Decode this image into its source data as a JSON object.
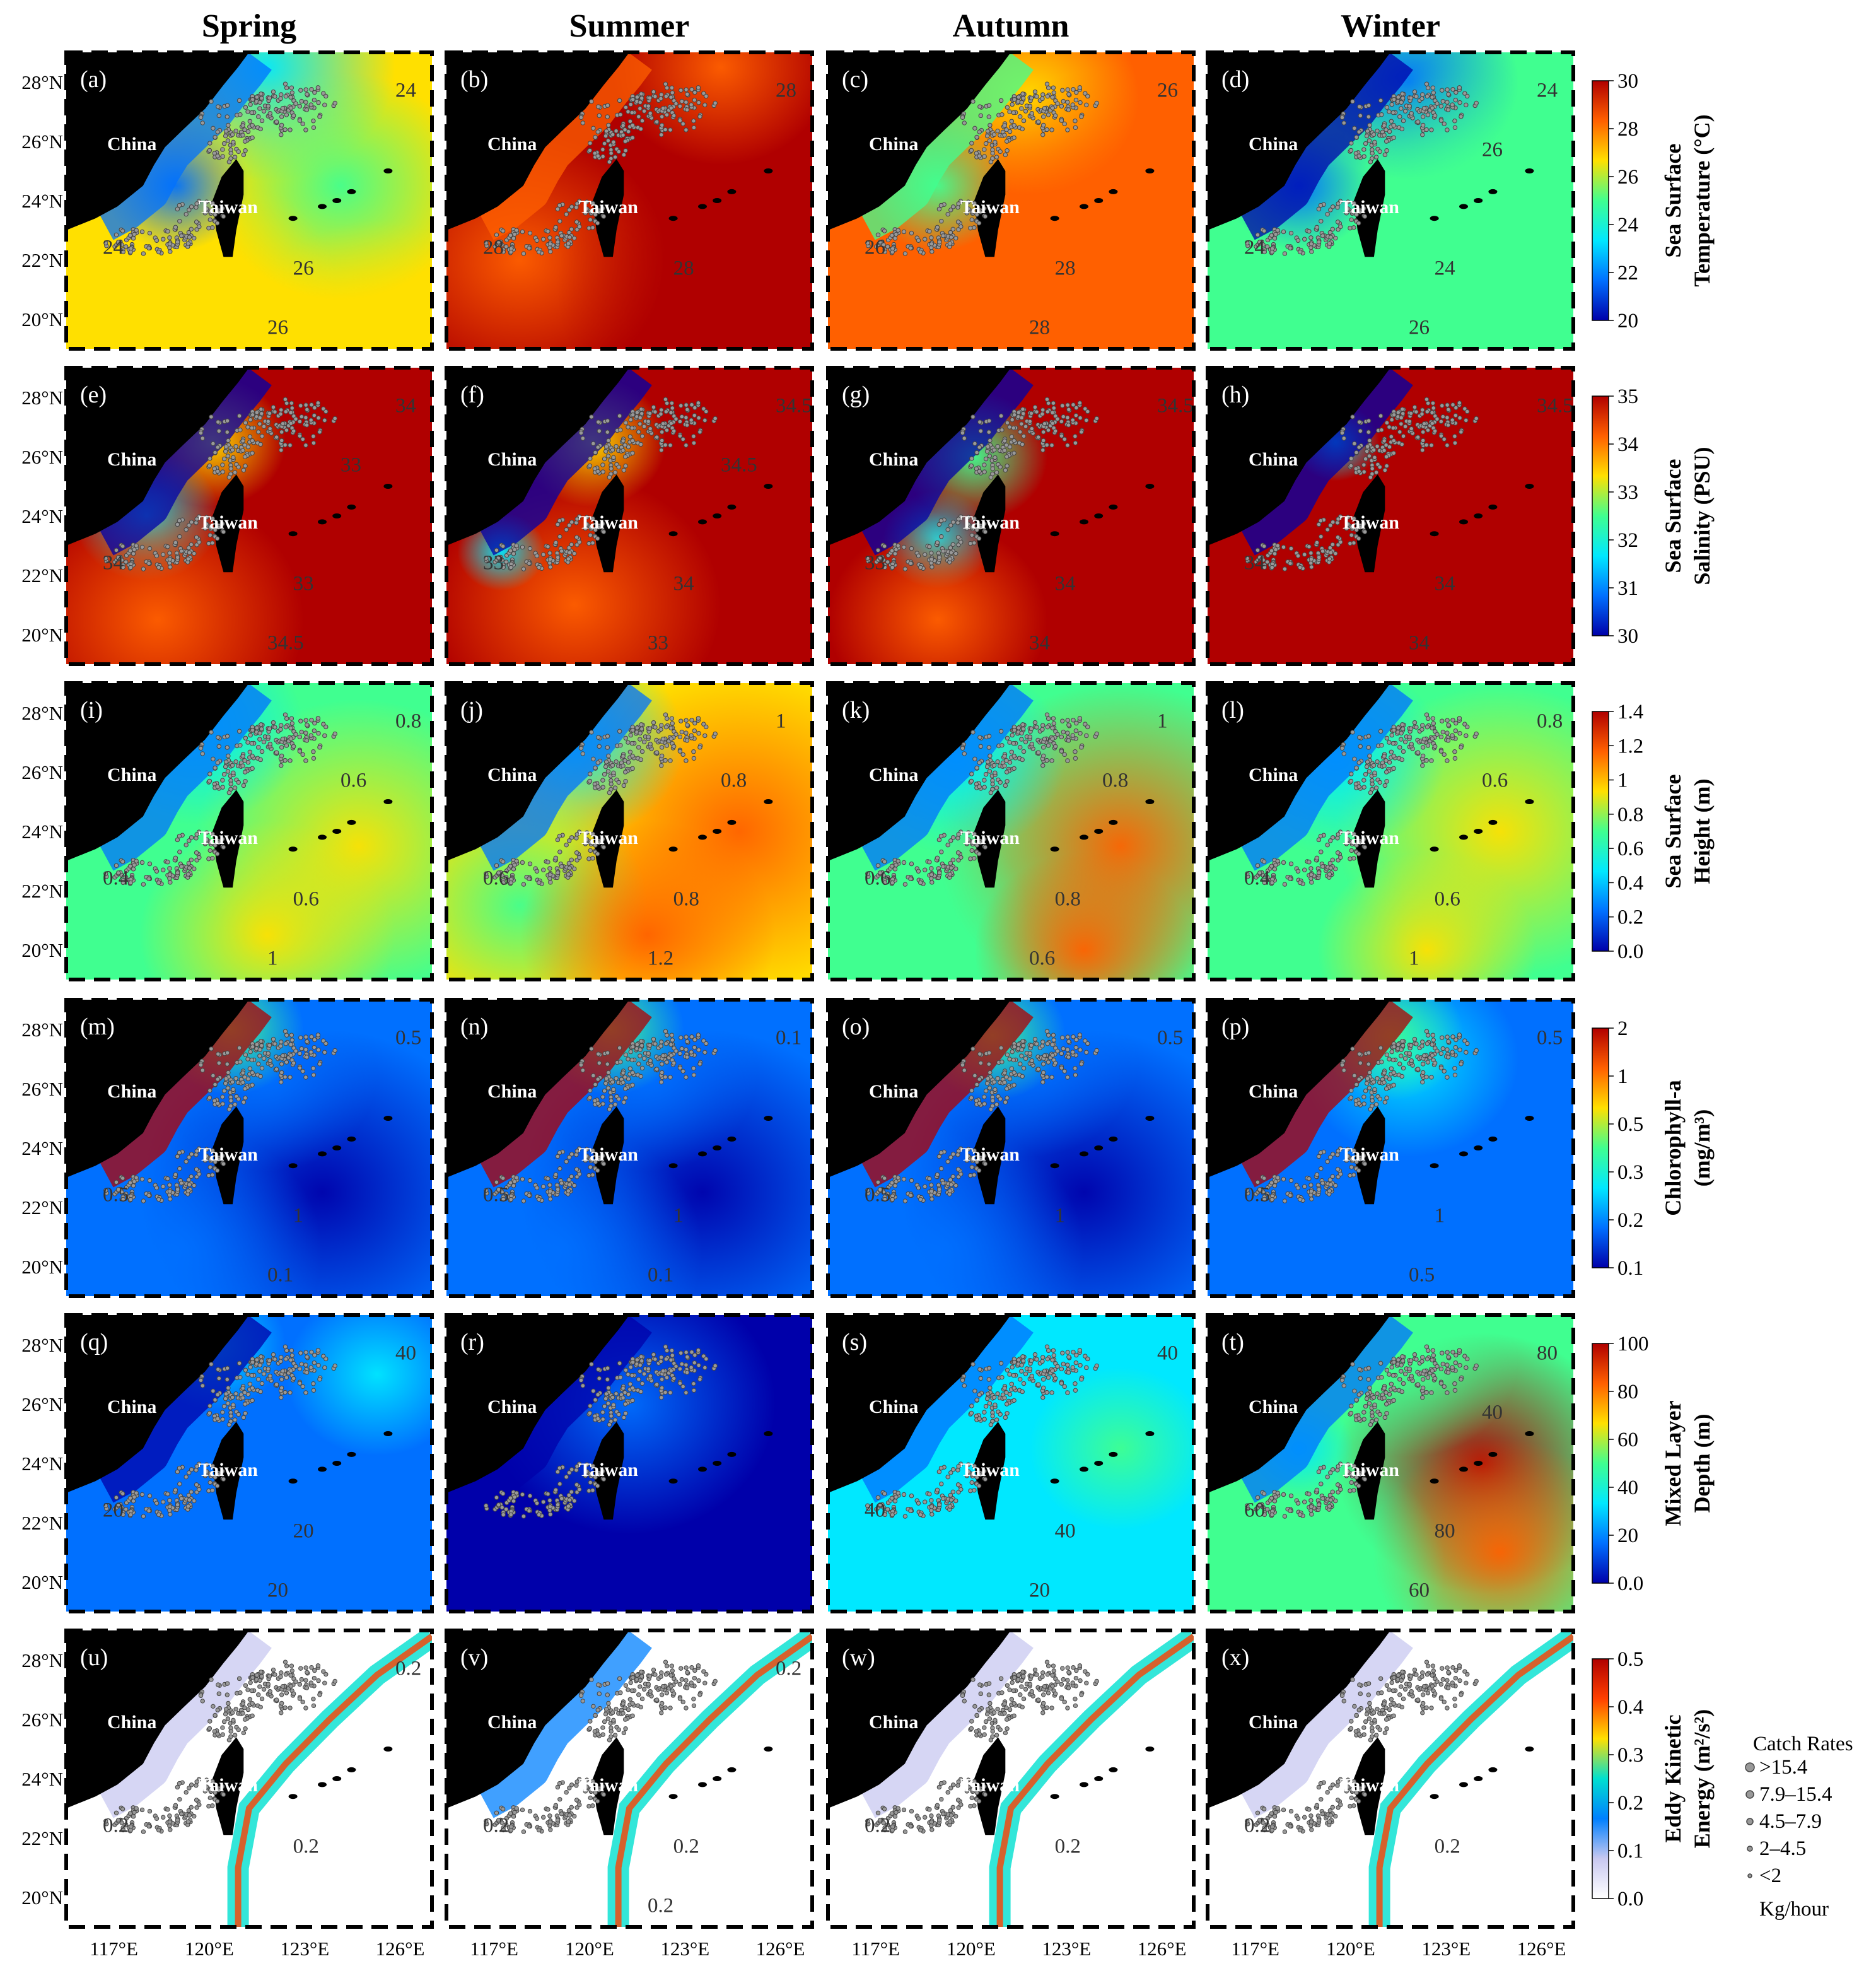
{
  "seasons": [
    "Spring",
    "Summer",
    "Autumn",
    "Winter"
  ],
  "lat_labels": [
    "28°N",
    "26°N",
    "24°N",
    "22°N",
    "20°N"
  ],
  "lon_labels": [
    "117°E",
    "120°E",
    "123°E",
    "126°E"
  ],
  "place_names": {
    "china": "China",
    "taiwan": "Taiwan"
  },
  "rows": [
    {
      "key": "sst",
      "letters": [
        "(a)",
        "(b)",
        "(c)",
        "(d)"
      ],
      "colorbar": {
        "title": [
          "Sea Surface",
          "Temperature (°C)"
        ],
        "ticks": [
          "30",
          "28",
          "26",
          "24",
          "22",
          "20"
        ],
        "colors": [
          "#0000aa",
          "#0070ff",
          "#00e8ff",
          "#40ff90",
          "#ffe000",
          "#ff6000",
          "#b00000"
        ]
      },
      "contours": [
        [
          "24",
          "26",
          "24",
          "26"
        ],
        [
          "28",
          "28",
          "28"
        ],
        [
          "26",
          "28",
          "26",
          "28"
        ],
        [
          "24",
          "24",
          "24",
          "26",
          "26"
        ]
      ]
    },
    {
      "key": "sss",
      "letters": [
        "(e)",
        "(f)",
        "(g)",
        "(h)"
      ],
      "colorbar": {
        "title": [
          "Sea Surface",
          "Salinity (PSU)"
        ],
        "ticks": [
          "35",
          "34",
          "33",
          "32",
          "31",
          "30"
        ],
        "colors": [
          "#0000aa",
          "#0070ff",
          "#00e8ff",
          "#40ff90",
          "#ffe000",
          "#ff6000",
          "#b00000"
        ]
      },
      "contours": [
        [
          "34",
          "33",
          "34",
          "34.5",
          "33"
        ],
        [
          "33",
          "34",
          "34.5",
          "33",
          "34.5"
        ],
        [
          "33",
          "34",
          "34.5",
          "34"
        ],
        [
          "34",
          "34",
          "34.5",
          "34"
        ]
      ]
    },
    {
      "key": "ssh",
      "letters": [
        "(i)",
        "(j)",
        "(k)",
        "(l)"
      ],
      "colorbar": {
        "title": [
          "Sea Surface",
          "Height (m)"
        ],
        "ticks": [
          "1.4",
          "1.2",
          "1",
          "0.8",
          "0.6",
          "0.4",
          "0.2",
          "0.0"
        ],
        "colors": [
          "#0000aa",
          "#0070ff",
          "#00e8ff",
          "#40ff90",
          "#ffe000",
          "#ff6000",
          "#b00000"
        ]
      },
      "contours": [
        [
          "0.4",
          "0.6",
          "0.8",
          "1",
          "0.6"
        ],
        [
          "0.6",
          "0.8",
          "1",
          "1.2",
          "0.8"
        ],
        [
          "0.6",
          "0.8",
          "1",
          "0.6",
          "0.8"
        ],
        [
          "0.4",
          "0.6",
          "0.8",
          "1",
          "0.6"
        ]
      ]
    },
    {
      "key": "chl",
      "letters": [
        "(m)",
        "(n)",
        "(o)",
        "(p)"
      ],
      "colorbar": {
        "title": [
          "Chlorophyll-a",
          "(mg/m³)"
        ],
        "ticks": [
          "2",
          "1",
          "0.5",
          "0.3",
          "0.2",
          "0.1"
        ],
        "colors": [
          "#0000aa",
          "#0070ff",
          "#00e8ff",
          "#40ff90",
          "#ffe000",
          "#ff6000",
          "#b00000"
        ]
      },
      "contours": [
        [
          "0.5",
          "1",
          "0.5",
          "0.1"
        ],
        [
          "0.5",
          "1",
          "0.1",
          "0.1"
        ],
        [
          "0.5",
          "1",
          "0.5"
        ],
        [
          "0.5",
          "1",
          "0.5",
          "0.5"
        ]
      ]
    },
    {
      "key": "mld",
      "letters": [
        "(q)",
        "(r)",
        "(s)",
        "(t)"
      ],
      "colorbar": {
        "title": [
          "Mixed Layer",
          "Depth (m)"
        ],
        "ticks": [
          "100",
          "80",
          "60",
          "40",
          "20",
          "0.0"
        ],
        "colors": [
          "#0000aa",
          "#0070ff",
          "#00e8ff",
          "#40ff90",
          "#ffe000",
          "#ff6000",
          "#b00000"
        ]
      },
      "contours": [
        [
          "20",
          "20",
          "40",
          "20"
        ],
        [],
        [
          "40",
          "40",
          "40",
          "20"
        ],
        [
          "60",
          "80",
          "80",
          "60",
          "40"
        ]
      ]
    },
    {
      "key": "eke",
      "letters": [
        "(u)",
        "(v)",
        "(w)",
        "(x)"
      ],
      "colorbar": {
        "title": [
          "Eddy Kinetic",
          "Energy (m²/s²)"
        ],
        "ticks": [
          "0.5",
          "0.4",
          "0.3",
          "0.2",
          "0.1",
          "0.0"
        ],
        "colors": [
          "#ffffff",
          "#c8c8f0",
          "#0080ff",
          "#00e0d0",
          "#ffe000",
          "#ff4000",
          "#b00000"
        ]
      },
      "contours": [
        [
          "0.2",
          "0.2",
          "0.2"
        ],
        [
          "0.2",
          "0.2",
          "0.2",
          "0.2"
        ],
        [
          "0.2",
          "0.2"
        ],
        [
          "0.2",
          "0.2"
        ]
      ]
    }
  ],
  "legend": {
    "title": "Catch Rates",
    "entries": [
      ">15.4",
      "7.9–15.4",
      "4.5–7.9",
      "2–4.5",
      "<2"
    ],
    "unit": "Kg/hour"
  }
}
